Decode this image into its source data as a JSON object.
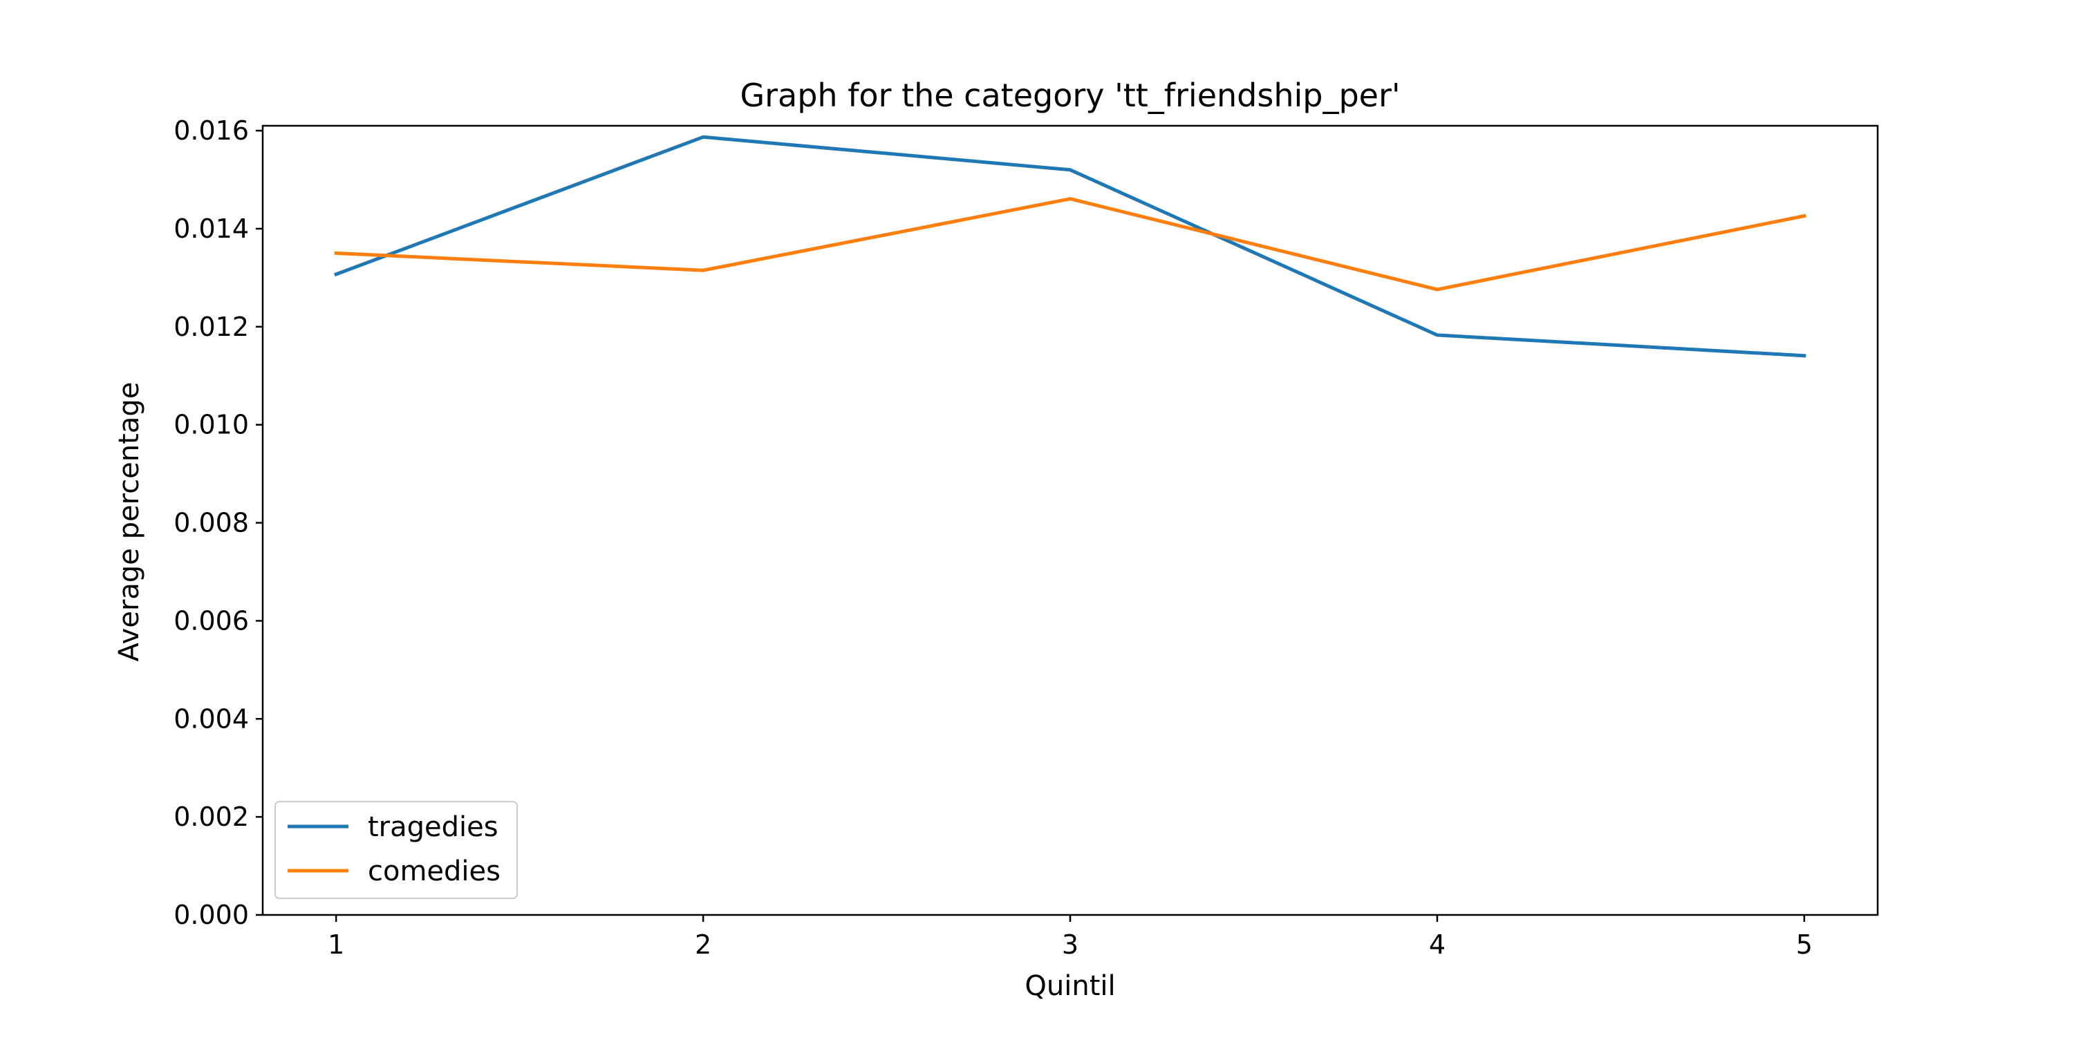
{
  "chart_data": {
    "type": "line",
    "title": "Graph for the category  'tt_friendship_per'",
    "xlabel": "Quintil",
    "ylabel": "Average percentage",
    "x": [
      1,
      2,
      3,
      4,
      5
    ],
    "xlim": [
      0.8,
      5.2
    ],
    "ylim": [
      0.0,
      0.0161
    ],
    "xticks": [
      "1",
      "2",
      "3",
      "4",
      "5"
    ],
    "yticks": [
      "0.000",
      "0.002",
      "0.004",
      "0.006",
      "0.008",
      "0.010",
      "0.012",
      "0.014",
      "0.016"
    ],
    "grid": false,
    "legend_position": "lower-left",
    "series": [
      {
        "name": "tragedies",
        "color": "#1f77b4",
        "values": [
          0.01307,
          0.01587,
          0.0152,
          0.01183,
          0.01141
        ]
      },
      {
        "name": "comedies",
        "color": "#ff7f0e",
        "values": [
          0.0135,
          0.01315,
          0.01461,
          0.01276,
          0.01426
        ]
      }
    ]
  }
}
